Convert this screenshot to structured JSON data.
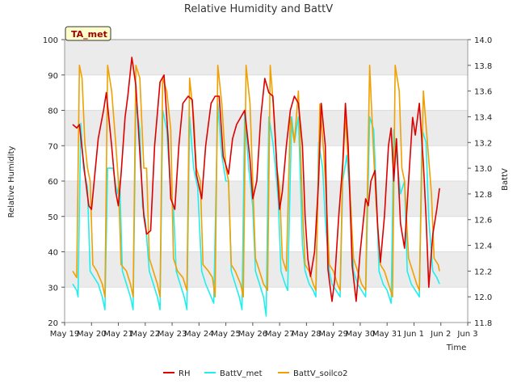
{
  "chart_data": {
    "type": "line",
    "title": "Relative Humidity and BattV",
    "badge": "TA_met",
    "xlabel": "Time",
    "ylabel_left": "Relative Humidity",
    "ylabel_right": "BattV",
    "x_ticks": [
      "May 19",
      "May 20",
      "May 21",
      "May 22",
      "May 23",
      "May 24",
      "May 25",
      "May 26",
      "May 27",
      "May 28",
      "May 29",
      "May 30",
      "May 31",
      "Jun 1",
      "Jun 2",
      "Jun 3"
    ],
    "x_range_days": [
      0,
      15
    ],
    "ylim_left": [
      20,
      100
    ],
    "ylim_right": [
      11.8,
      14.0
    ],
    "y_ticks_left": [
      "20",
      "30",
      "40",
      "50",
      "60",
      "70",
      "80",
      "90",
      "100"
    ],
    "y_ticks_right": [
      "11.8",
      "12.0",
      "12.2",
      "12.4",
      "12.6",
      "12.8",
      "13.0",
      "13.2",
      "13.4",
      "13.6",
      "13.8",
      "14.0"
    ],
    "bands": "alternating gray horizontal bands every 10 RH units",
    "legend_position": "bottom-center",
    "series": [
      {
        "name": "RH",
        "axis": "left",
        "color": "#dd0000",
        "points": [
          [
            0.3,
            76
          ],
          [
            0.45,
            75
          ],
          [
            0.55,
            76
          ],
          [
            0.75,
            62
          ],
          [
            0.9,
            53
          ],
          [
            1.0,
            52
          ],
          [
            1.1,
            60
          ],
          [
            1.25,
            72
          ],
          [
            1.45,
            80
          ],
          [
            1.55,
            85
          ],
          [
            1.75,
            70
          ],
          [
            1.9,
            57
          ],
          [
            2.0,
            53
          ],
          [
            2.1,
            62
          ],
          [
            2.25,
            78
          ],
          [
            2.35,
            84
          ],
          [
            2.5,
            95
          ],
          [
            2.65,
            87
          ],
          [
            2.8,
            68
          ],
          [
            2.95,
            50
          ],
          [
            3.05,
            45
          ],
          [
            3.2,
            46
          ],
          [
            3.35,
            70
          ],
          [
            3.55,
            88
          ],
          [
            3.7,
            90
          ],
          [
            3.85,
            72
          ],
          [
            3.95,
            55
          ],
          [
            4.1,
            52
          ],
          [
            4.25,
            70
          ],
          [
            4.4,
            82
          ],
          [
            4.6,
            84
          ],
          [
            4.75,
            83
          ],
          [
            4.9,
            62
          ],
          [
            5.1,
            55
          ],
          [
            5.25,
            70
          ],
          [
            5.45,
            82
          ],
          [
            5.6,
            84
          ],
          [
            5.75,
            84
          ],
          [
            5.9,
            67
          ],
          [
            6.1,
            62
          ],
          [
            6.25,
            72
          ],
          [
            6.4,
            76
          ],
          [
            6.55,
            78
          ],
          [
            6.7,
            80
          ],
          [
            6.9,
            66
          ],
          [
            7.0,
            55
          ],
          [
            7.15,
            60
          ],
          [
            7.3,
            78
          ],
          [
            7.45,
            89
          ],
          [
            7.6,
            85
          ],
          [
            7.75,
            84
          ],
          [
            7.9,
            64
          ],
          [
            8.0,
            52
          ],
          [
            8.1,
            57
          ],
          [
            8.25,
            70
          ],
          [
            8.4,
            80
          ],
          [
            8.55,
            84
          ],
          [
            8.7,
            82
          ],
          [
            8.85,
            70
          ],
          [
            8.95,
            50
          ],
          [
            9.05,
            38
          ],
          [
            9.15,
            33
          ],
          [
            9.3,
            40
          ],
          [
            9.45,
            60
          ],
          [
            9.55,
            82
          ],
          [
            9.7,
            70
          ],
          [
            9.8,
            35
          ],
          [
            9.95,
            26
          ],
          [
            10.05,
            32
          ],
          [
            10.2,
            50
          ],
          [
            10.35,
            65
          ],
          [
            10.45,
            82
          ],
          [
            10.55,
            70
          ],
          [
            10.7,
            36
          ],
          [
            10.85,
            26
          ],
          [
            11.0,
            40
          ],
          [
            11.2,
            55
          ],
          [
            11.3,
            53
          ],
          [
            11.4,
            60
          ],
          [
            11.55,
            63
          ],
          [
            11.65,
            47
          ],
          [
            11.75,
            37
          ],
          [
            11.9,
            50
          ],
          [
            12.05,
            70
          ],
          [
            12.15,
            75
          ],
          [
            12.25,
            60
          ],
          [
            12.35,
            72
          ],
          [
            12.5,
            48
          ],
          [
            12.65,
            41
          ],
          [
            12.8,
            60
          ],
          [
            12.95,
            78
          ],
          [
            13.05,
            73
          ],
          [
            13.2,
            82
          ],
          [
            13.35,
            65
          ],
          [
            13.45,
            50
          ],
          [
            13.55,
            30
          ],
          [
            13.7,
            45
          ],
          [
            13.85,
            52
          ],
          [
            13.95,
            58
          ]
        ]
      },
      {
        "name": "BattV_met",
        "axis": "right",
        "color": "#22eeee",
        "points": [
          [
            0.3,
            12.1
          ],
          [
            0.45,
            12.05
          ],
          [
            0.5,
            12.0
          ],
          [
            0.6,
            13.35
          ],
          [
            0.7,
            13.0
          ],
          [
            0.85,
            12.85
          ],
          [
            0.95,
            12.2
          ],
          [
            1.1,
            12.15
          ],
          [
            1.25,
            12.1
          ],
          [
            1.4,
            12.0
          ],
          [
            1.5,
            11.9
          ],
          [
            1.6,
            13.0
          ],
          [
            1.8,
            13.0
          ],
          [
            1.95,
            12.8
          ],
          [
            2.05,
            12.9
          ],
          [
            2.15,
            12.2
          ],
          [
            2.3,
            12.1
          ],
          [
            2.45,
            12.0
          ],
          [
            2.55,
            11.9
          ],
          [
            2.65,
            13.5
          ],
          [
            2.8,
            13.3
          ],
          [
            2.9,
            12.7
          ],
          [
            3.0,
            12.6
          ],
          [
            3.15,
            12.2
          ],
          [
            3.3,
            12.1
          ],
          [
            3.45,
            12.0
          ],
          [
            3.55,
            11.9
          ],
          [
            3.65,
            13.45
          ],
          [
            3.8,
            13.3
          ],
          [
            3.95,
            12.8
          ],
          [
            4.05,
            12.7
          ],
          [
            4.15,
            12.2
          ],
          [
            4.3,
            12.1
          ],
          [
            4.45,
            12.0
          ],
          [
            4.55,
            11.9
          ],
          [
            4.65,
            13.4
          ],
          [
            4.8,
            13.0
          ],
          [
            4.95,
            12.85
          ],
          [
            5.1,
            12.2
          ],
          [
            5.25,
            12.1
          ],
          [
            5.45,
            12.0
          ],
          [
            5.55,
            11.95
          ],
          [
            5.7,
            13.5
          ],
          [
            5.85,
            13.1
          ],
          [
            6.0,
            12.9
          ],
          [
            6.1,
            12.9
          ],
          [
            6.2,
            12.2
          ],
          [
            6.35,
            12.1
          ],
          [
            6.5,
            12.0
          ],
          [
            6.6,
            11.9
          ],
          [
            6.7,
            13.45
          ],
          [
            6.85,
            13.0
          ],
          [
            7.0,
            12.7
          ],
          [
            7.1,
            12.2
          ],
          [
            7.25,
            12.1
          ],
          [
            7.4,
            12.0
          ],
          [
            7.5,
            11.85
          ],
          [
            7.6,
            13.4
          ],
          [
            7.75,
            13.2
          ],
          [
            7.85,
            13.0
          ],
          [
            7.95,
            12.75
          ],
          [
            8.05,
            12.2
          ],
          [
            8.2,
            12.1
          ],
          [
            8.3,
            12.05
          ],
          [
            8.45,
            13.4
          ],
          [
            8.55,
            13.2
          ],
          [
            8.7,
            13.4
          ],
          [
            8.85,
            12.4
          ],
          [
            8.95,
            12.2
          ],
          [
            9.1,
            12.1
          ],
          [
            9.25,
            12.05
          ],
          [
            9.35,
            12.0
          ],
          [
            9.45,
            13.2
          ],
          [
            9.6,
            13.0
          ],
          [
            9.7,
            12.6
          ],
          [
            9.85,
            12.2
          ],
          [
            9.95,
            12.1
          ],
          [
            10.1,
            12.05
          ],
          [
            10.25,
            12.0
          ],
          [
            10.35,
            12.9
          ],
          [
            10.5,
            13.1
          ],
          [
            10.65,
            12.7
          ],
          [
            10.75,
            12.2
          ],
          [
            10.9,
            12.1
          ],
          [
            11.05,
            12.05
          ],
          [
            11.2,
            12.0
          ],
          [
            11.35,
            13.4
          ],
          [
            11.5,
            13.3
          ],
          [
            11.6,
            12.8
          ],
          [
            11.7,
            12.2
          ],
          [
            11.85,
            12.1
          ],
          [
            12.0,
            12.05
          ],
          [
            12.15,
            11.95
          ],
          [
            12.25,
            13.3
          ],
          [
            12.4,
            13.0
          ],
          [
            12.5,
            12.8
          ],
          [
            12.65,
            12.9
          ],
          [
            12.75,
            12.2
          ],
          [
            12.9,
            12.1
          ],
          [
            13.05,
            12.05
          ],
          [
            13.2,
            12.0
          ],
          [
            13.3,
            13.3
          ],
          [
            13.45,
            13.2
          ],
          [
            13.55,
            12.6
          ],
          [
            13.7,
            12.2
          ],
          [
            13.85,
            12.15
          ],
          [
            13.95,
            12.1
          ]
        ]
      },
      {
        "name": "BattV_soilco2",
        "axis": "right",
        "color": "#f0a000",
        "points": [
          [
            0.3,
            12.2
          ],
          [
            0.45,
            12.15
          ],
          [
            0.55,
            13.8
          ],
          [
            0.65,
            13.7
          ],
          [
            0.75,
            13.2
          ],
          [
            0.85,
            13.0
          ],
          [
            0.95,
            12.9
          ],
          [
            1.05,
            12.25
          ],
          [
            1.2,
            12.2
          ],
          [
            1.4,
            12.1
          ],
          [
            1.5,
            12.0
          ],
          [
            1.6,
            13.8
          ],
          [
            1.75,
            13.6
          ],
          [
            1.9,
            13.2
          ],
          [
            2.0,
            12.9
          ],
          [
            2.1,
            12.25
          ],
          [
            2.3,
            12.2
          ],
          [
            2.45,
            12.1
          ],
          [
            2.55,
            12.0
          ],
          [
            2.65,
            13.8
          ],
          [
            2.8,
            13.7
          ],
          [
            2.95,
            13.0
          ],
          [
            3.05,
            13.0
          ],
          [
            3.15,
            12.3
          ],
          [
            3.3,
            12.2
          ],
          [
            3.45,
            12.1
          ],
          [
            3.55,
            12.0
          ],
          [
            3.65,
            13.7
          ],
          [
            3.8,
            13.6
          ],
          [
            3.95,
            13.3
          ],
          [
            4.05,
            12.3
          ],
          [
            4.2,
            12.2
          ],
          [
            4.4,
            12.15
          ],
          [
            4.55,
            12.05
          ],
          [
            4.65,
            13.7
          ],
          [
            4.8,
            13.4
          ],
          [
            4.9,
            13.0
          ],
          [
            5.05,
            12.9
          ],
          [
            5.15,
            12.25
          ],
          [
            5.35,
            12.2
          ],
          [
            5.5,
            12.15
          ],
          [
            5.6,
            12.0
          ],
          [
            5.7,
            13.8
          ],
          [
            5.85,
            13.5
          ],
          [
            6.0,
            13.0
          ],
          [
            6.1,
            12.9
          ],
          [
            6.2,
            12.25
          ],
          [
            6.35,
            12.2
          ],
          [
            6.55,
            12.1
          ],
          [
            6.65,
            12.0
          ],
          [
            6.75,
            13.8
          ],
          [
            6.9,
            13.5
          ],
          [
            7.0,
            12.9
          ],
          [
            7.1,
            12.3
          ],
          [
            7.25,
            12.2
          ],
          [
            7.4,
            12.1
          ],
          [
            7.55,
            12.05
          ],
          [
            7.65,
            13.8
          ],
          [
            7.8,
            13.4
          ],
          [
            7.9,
            13.0
          ],
          [
            8.0,
            12.85
          ],
          [
            8.1,
            12.3
          ],
          [
            8.25,
            12.2
          ],
          [
            8.4,
            13.4
          ],
          [
            8.55,
            13.2
          ],
          [
            8.7,
            13.6
          ],
          [
            8.85,
            12.7
          ],
          [
            8.95,
            12.25
          ],
          [
            9.1,
            12.2
          ],
          [
            9.25,
            12.1
          ],
          [
            9.35,
            12.05
          ],
          [
            9.5,
            13.5
          ],
          [
            9.65,
            13.1
          ],
          [
            9.75,
            12.7
          ],
          [
            9.85,
            12.25
          ],
          [
            10.0,
            12.2
          ],
          [
            10.15,
            12.1
          ],
          [
            10.25,
            12.05
          ],
          [
            10.35,
            13.0
          ],
          [
            10.45,
            13.4
          ],
          [
            10.6,
            12.9
          ],
          [
            10.75,
            12.3
          ],
          [
            10.9,
            12.2
          ],
          [
            11.05,
            12.1
          ],
          [
            11.2,
            12.05
          ],
          [
            11.35,
            13.8
          ],
          [
            11.5,
            13.1
          ],
          [
            11.6,
            12.7
          ],
          [
            11.75,
            12.25
          ],
          [
            11.9,
            12.2
          ],
          [
            12.05,
            12.1
          ],
          [
            12.2,
            12.0
          ],
          [
            12.3,
            13.8
          ],
          [
            12.45,
            13.6
          ],
          [
            12.55,
            13.0
          ],
          [
            12.65,
            12.9
          ],
          [
            12.8,
            12.3
          ],
          [
            12.95,
            12.2
          ],
          [
            13.1,
            12.1
          ],
          [
            13.2,
            12.05
          ],
          [
            13.35,
            13.6
          ],
          [
            13.5,
            13.2
          ],
          [
            13.65,
            12.8
          ],
          [
            13.75,
            12.3
          ],
          [
            13.9,
            12.25
          ],
          [
            13.95,
            12.2
          ]
        ]
      }
    ]
  }
}
